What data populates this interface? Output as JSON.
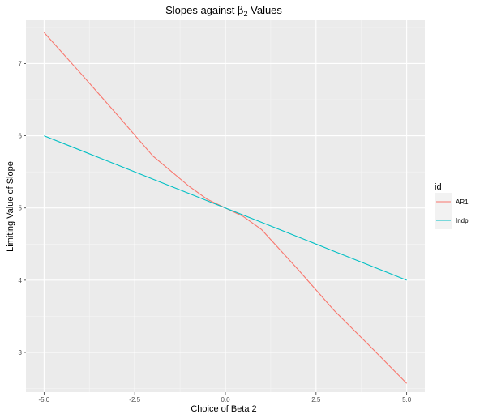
{
  "chart_data": {
    "type": "line",
    "title": "Slopes against β₂ Values",
    "title_parts": {
      "before": "Slopes against ",
      "symbol": "β",
      "subscript": "2",
      "after": " Values"
    },
    "xlabel": "Choice of Beta 2",
    "ylabel": "Limiting Value of Slope",
    "xlim": [
      -5.5,
      5.5
    ],
    "ylim": [
      2.45,
      7.6
    ],
    "x_ticks": [
      -5.0,
      -2.5,
      0.0,
      2.5,
      5.0
    ],
    "x_tick_labels": [
      "-5.0",
      "-2.5",
      "0.0",
      "2.5",
      "5.0"
    ],
    "y_ticks": [
      3,
      4,
      5,
      6,
      7
    ],
    "y_tick_labels": [
      "3",
      "4",
      "5",
      "6",
      "7"
    ],
    "grid": true,
    "background": "#ebebeb",
    "legend": {
      "title": "id",
      "placement": "right",
      "entries": [
        "AR1",
        "Indp"
      ]
    },
    "series": [
      {
        "name": "AR1",
        "color": "#f8766d",
        "x": [
          -5,
          -4,
          -3,
          -2,
          -1,
          -0.5,
          0,
          0.5,
          1,
          2,
          3,
          4,
          5
        ],
        "y": [
          7.43,
          6.87,
          6.3,
          5.72,
          5.3,
          5.12,
          5.0,
          4.88,
          4.7,
          4.15,
          3.58,
          3.08,
          2.57
        ]
      },
      {
        "name": "Indp",
        "color": "#00bfc4",
        "x": [
          -5,
          -4,
          -3,
          -2,
          -1,
          0,
          1,
          2,
          3,
          4,
          5
        ],
        "y": [
          6.0,
          5.8,
          5.6,
          5.4,
          5.2,
          5.0,
          4.8,
          4.6,
          4.4,
          4.2,
          4.0
        ]
      }
    ]
  }
}
